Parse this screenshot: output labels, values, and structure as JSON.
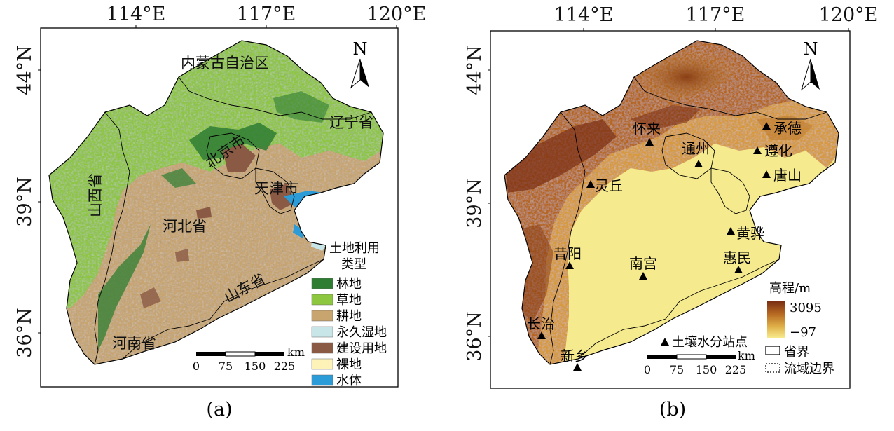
{
  "panel_a": {
    "caption": "(a)",
    "lon_ticks": [
      "114°E",
      "117°E",
      "120°E"
    ],
    "lat_ticks": [
      "44°N",
      "39°N",
      "36°N"
    ],
    "north": "N",
    "region_labels": {
      "neimenggu": "内蒙古自治区",
      "liaoning": "辽宁省",
      "beijing": "北京市",
      "tianjin": "天津市",
      "shanxi": "山西省",
      "hebei": "河北省",
      "shandong": "山东省",
      "henan": "河南省"
    },
    "legend": {
      "title_line1": "土地利用",
      "title_line2": "类型",
      "items": [
        {
          "label": "林地",
          "color": "#2e7d32"
        },
        {
          "label": "草地",
          "color": "#8dc63f"
        },
        {
          "label": "耕地",
          "color": "#c8a46e"
        },
        {
          "label": "永久湿地",
          "color": "#c8e6e8"
        },
        {
          "label": "建设用地",
          "color": "#8b5a45"
        },
        {
          "label": "裸地",
          "color": "#fdf3b8"
        },
        {
          "label": "水体",
          "color": "#2b9cd8"
        }
      ]
    },
    "scale": {
      "unit": "km",
      "ticks": [
        "0",
        "75",
        "150",
        "225"
      ]
    }
  },
  "panel_b": {
    "caption": "(b)",
    "lon_ticks": [
      "114°E",
      "117°E",
      "120°E"
    ],
    "lat_ticks": [
      "44°N",
      "39°N",
      "36°N"
    ],
    "north": "N",
    "stations": [
      {
        "name": "承德"
      },
      {
        "name": "怀来"
      },
      {
        "name": "通州"
      },
      {
        "name": "遵化"
      },
      {
        "name": "唐山"
      },
      {
        "name": "灵丘"
      },
      {
        "name": "黄骅"
      },
      {
        "name": "昔阳"
      },
      {
        "name": "南宫"
      },
      {
        "name": "惠民"
      },
      {
        "name": "长治"
      },
      {
        "name": "新乡"
      }
    ],
    "elevation_legend": {
      "title": "高程/m",
      "max": "3095",
      "min": "−97"
    },
    "legend_items": {
      "station": "土壤水分站点",
      "province": "省界",
      "basin": "流域边界"
    },
    "scale": {
      "unit": "km",
      "ticks": [
        "0",
        "75",
        "150",
        "225"
      ]
    }
  }
}
